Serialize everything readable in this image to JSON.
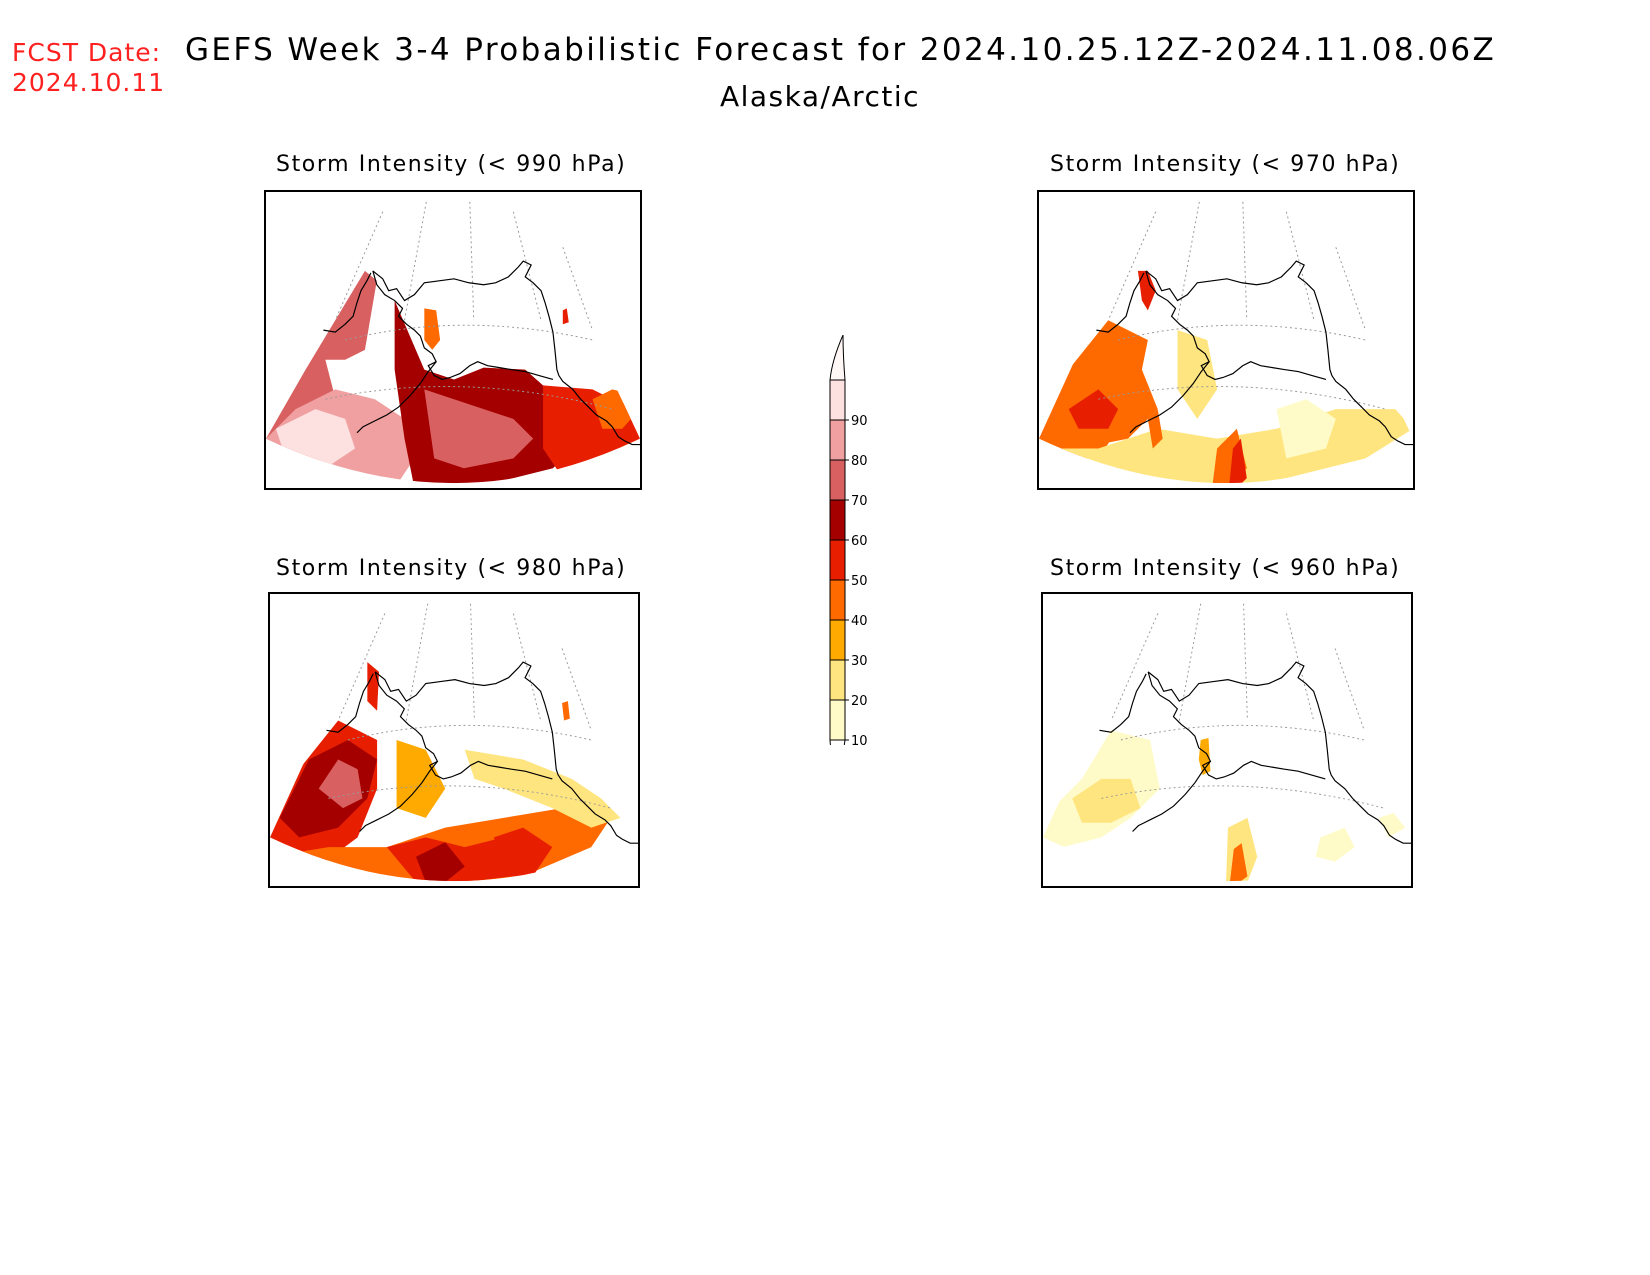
{
  "header": {
    "fcst_label": "FCST Date:",
    "fcst_date": "2024.10.11",
    "title": "GEFS Week 3-4 Probabilistic Forecast for 2024.10.25.12Z-2024.11.08.06Z",
    "subtitle": "Alaska/Arctic"
  },
  "panels": [
    {
      "title": "Storm Intensity (< 990 hPa)",
      "intensity": "high"
    },
    {
      "title": "Storm Intensity (< 970 hPa)",
      "intensity": "medium"
    },
    {
      "title": "Storm Intensity (< 980 hPa)",
      "intensity": "medium-high"
    },
    {
      "title": "Storm Intensity (< 960 hPa)",
      "intensity": "low"
    }
  ],
  "legend": {
    "levels": [
      "10",
      "20",
      "30",
      "40",
      "50",
      "60",
      "70",
      "80",
      "90"
    ],
    "colors": [
      "#fffbc8",
      "#ffe57f",
      "#ffaa00",
      "#ff6a00",
      "#e81e00",
      "#a50000",
      "#d96060",
      "#f0a0a0",
      "#fde0e0"
    ]
  },
  "colors": {
    "fcst_text": "#ff2020"
  }
}
